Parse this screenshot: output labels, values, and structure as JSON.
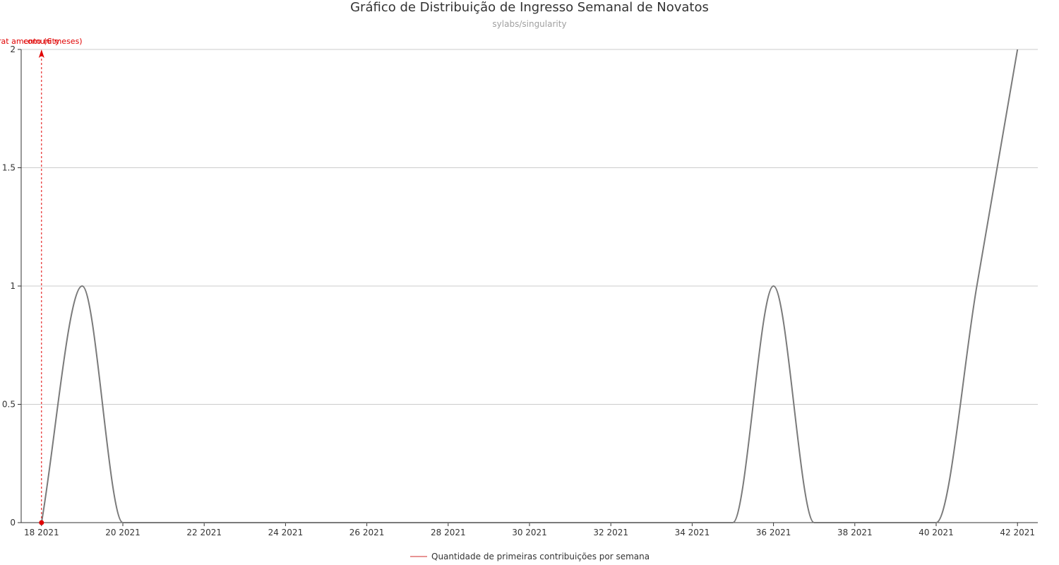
{
  "chart_data": {
    "type": "line",
    "title": "Gráfico de Distribuição de Ingresso Semanal de Novatos",
    "subtitle": "sylabs/singularity",
    "x_ticks": [
      "18 2021",
      "20 2021",
      "22 2021",
      "24 2021",
      "26 2021",
      "28 2021",
      "30 2021",
      "32 2021",
      "34 2021",
      "36 2021",
      "38 2021",
      "40 2021",
      "42 2021"
    ],
    "x_tick_values": [
      18,
      20,
      22,
      24,
      26,
      28,
      30,
      32,
      34,
      36,
      38,
      40,
      42
    ],
    "xlim": [
      17.5,
      42.5
    ],
    "y_ticks": [
      "0",
      "0.5",
      "1",
      "1.5",
      "2"
    ],
    "y_tick_values": [
      0,
      0.5,
      1,
      1.5,
      2
    ],
    "ylim": [
      0,
      2
    ],
    "grid": true,
    "series": [
      {
        "name": "Quantidade de primeiras contribuições por semana",
        "color": "#7a7a7a",
        "x": [
          18,
          19,
          20,
          21,
          22,
          23,
          24,
          25,
          26,
          27,
          28,
          29,
          30,
          31,
          32,
          33,
          34,
          35,
          36,
          37,
          38,
          39,
          40,
          41,
          42
        ],
        "values": [
          0,
          1,
          0,
          0,
          0,
          0,
          0,
          0,
          0,
          0,
          0,
          0,
          0,
          0,
          0,
          0,
          0,
          0,
          1,
          0,
          0,
          0,
          0,
          1,
          2
        ]
      }
    ],
    "annotations": [
      {
        "x": 18,
        "y": 0,
        "labels": [
          "rat amento (6 meses)",
          "comunity"
        ],
        "color": "#e00000"
      }
    ],
    "legend": {
      "placement": "bottom-center",
      "label": "Quantidade de primeiras contribuições por semana",
      "color": "#e07070"
    }
  }
}
